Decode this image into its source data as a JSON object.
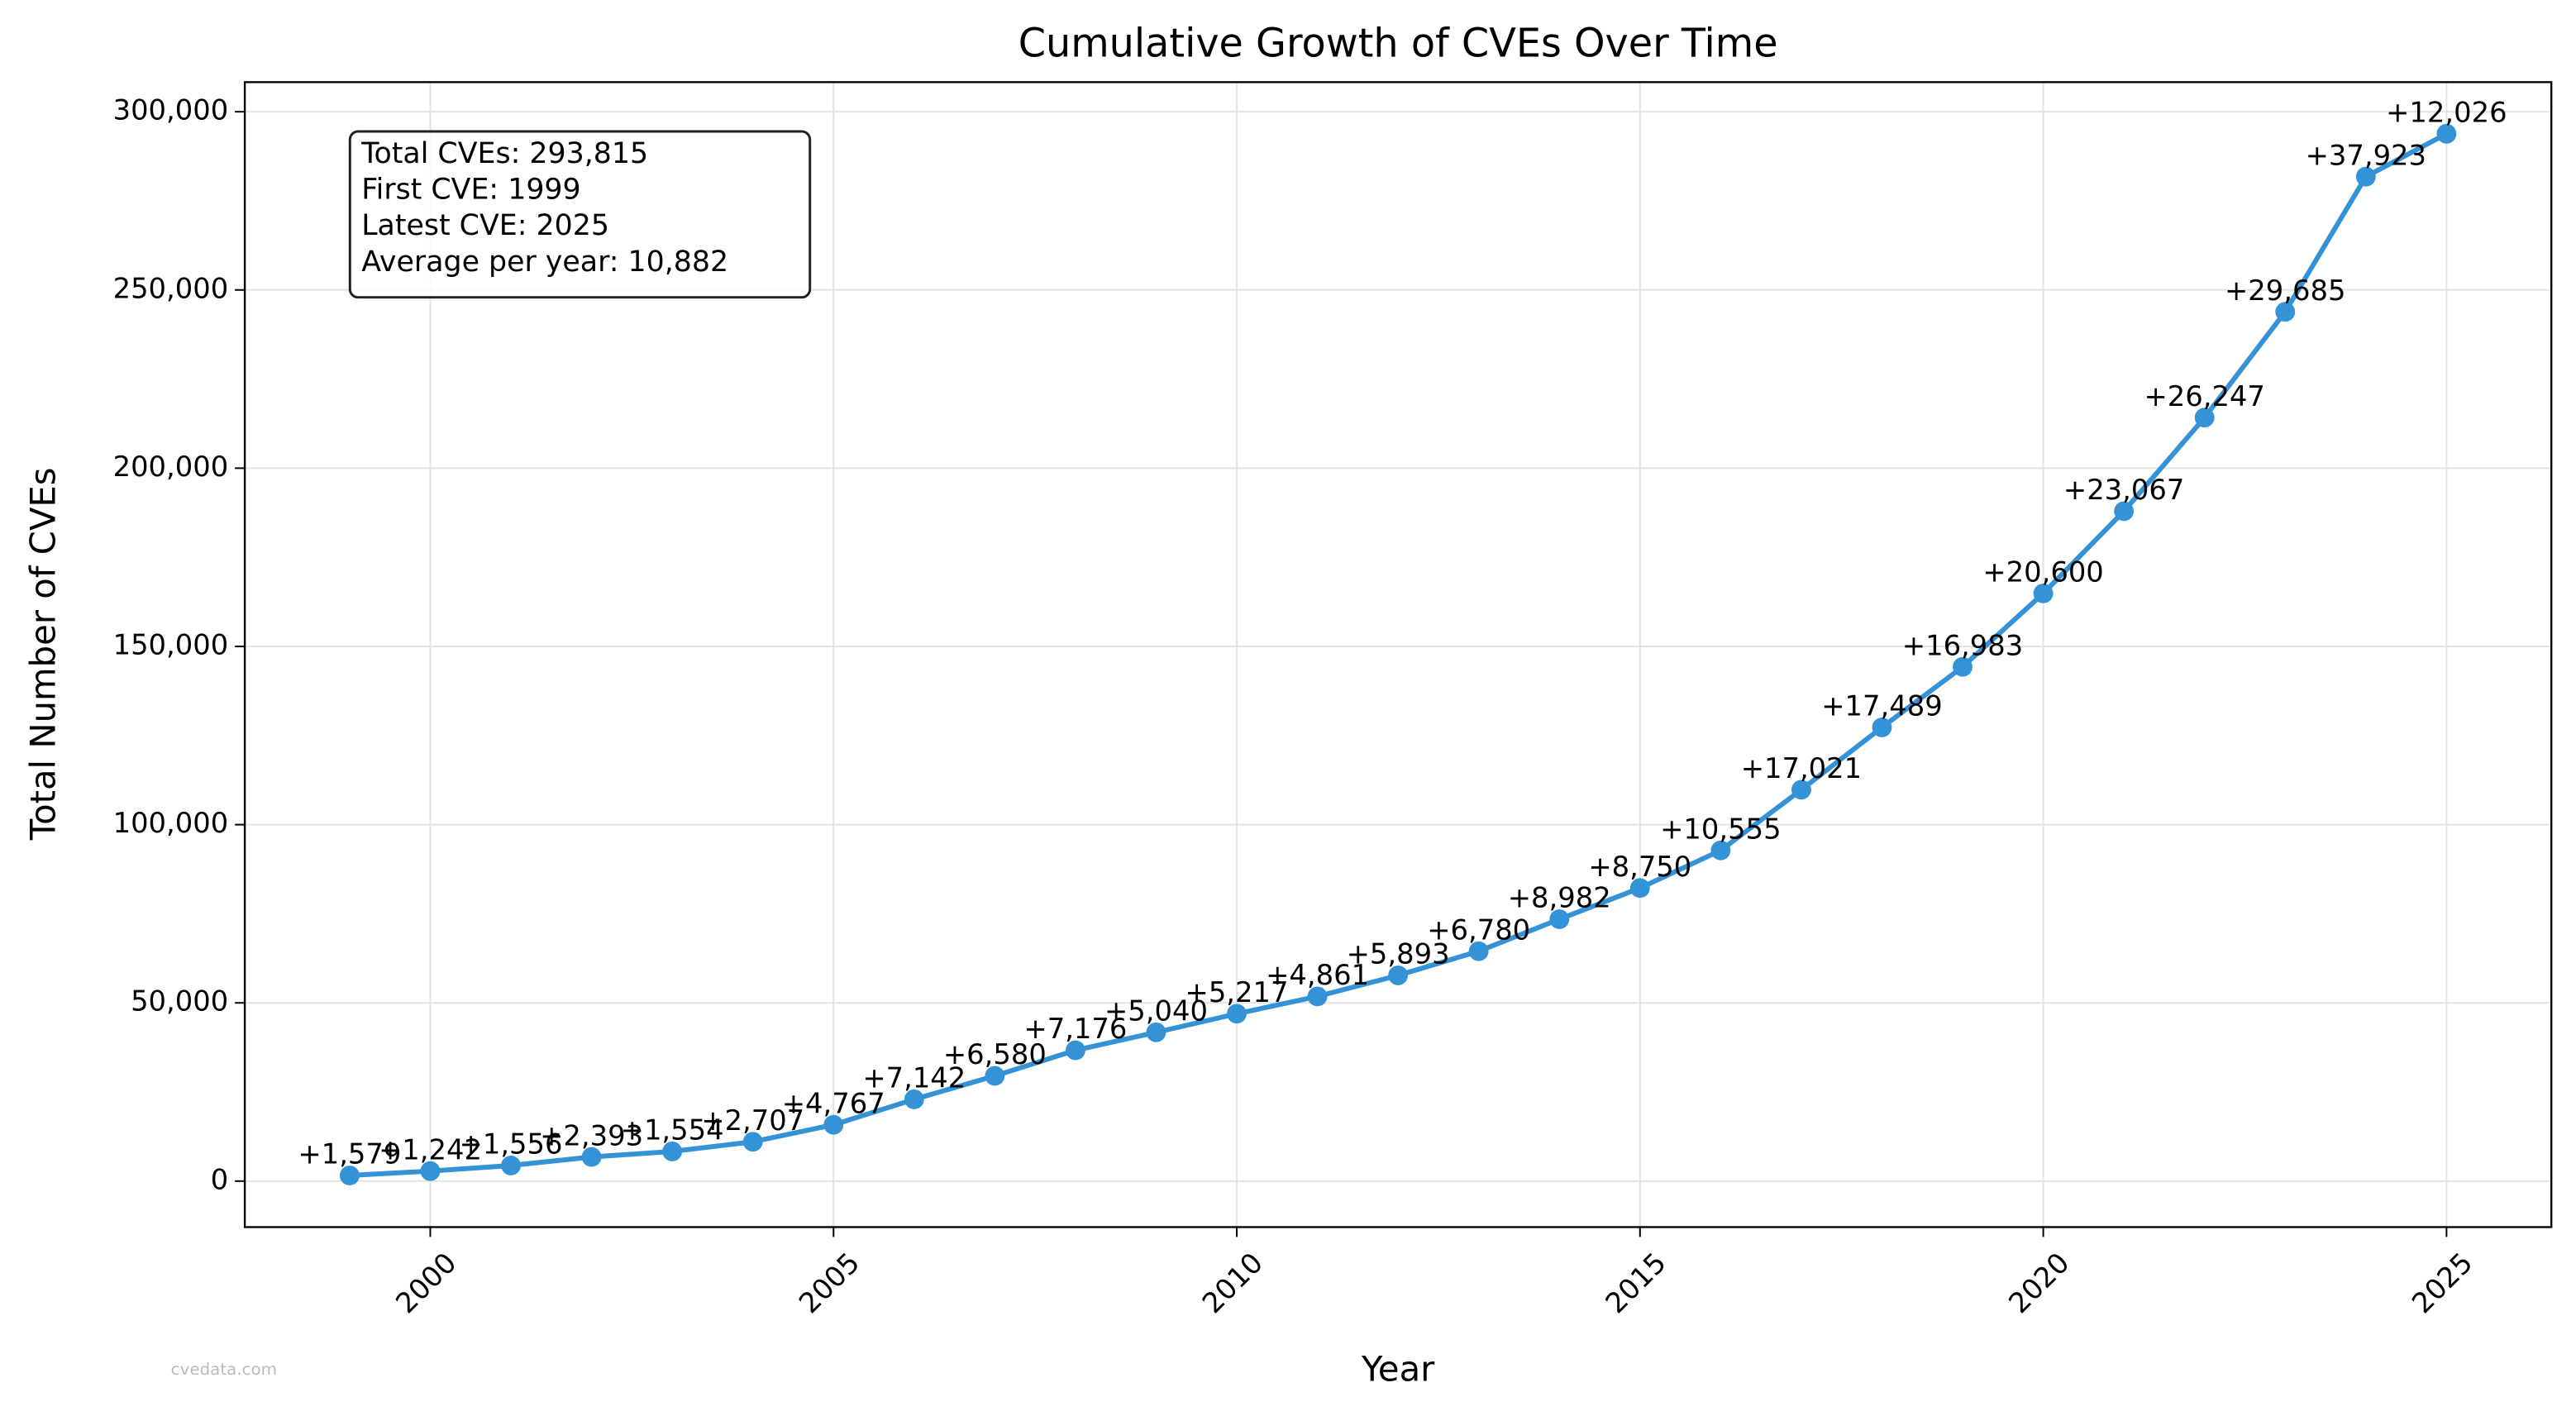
{
  "chart_data": {
    "type": "line",
    "title": "Cumulative Growth of CVEs Over Time",
    "x_label": "Year",
    "y_label": "Total Number of CVEs",
    "x": [
      1999,
      2000,
      2001,
      2002,
      2003,
      2004,
      2005,
      2006,
      2007,
      2008,
      2009,
      2010,
      2011,
      2012,
      2013,
      2014,
      2015,
      2016,
      2017,
      2018,
      2019,
      2020,
      2021,
      2022,
      2023,
      2024,
      2025
    ],
    "values": [
      1579,
      2821,
      4377,
      6770,
      8324,
      11031,
      15798,
      22940,
      29520,
      36696,
      41736,
      46953,
      51814,
      57707,
      64487,
      73469,
      82219,
      92774,
      109795,
      127284,
      144267,
      164867,
      187934,
      214181,
      243866,
      281789,
      293815
    ],
    "annotations": [
      "+1,579",
      "+1,242",
      "+1,556",
      "+2,393",
      "+1,554",
      "+2,707",
      "+4,767",
      "+7,142",
      "+6,580",
      "+7,176",
      "+5,040",
      "+5,217",
      "+4,861",
      "+5,893",
      "+6,780",
      "+8,982",
      "+8,750",
      "+10,555",
      "+17,021",
      "+17,489",
      "+16,983",
      "+20,600",
      "+23,067",
      "+26,247",
      "+29,685",
      "+37,923",
      "+12,026"
    ],
    "color": "#3492d6",
    "xlim": [
      1997.7,
      2026.3
    ],
    "xticks": [
      2000,
      2005,
      2010,
      2015,
      2020,
      2025
    ],
    "ylim": [
      -12900,
      308300
    ],
    "yticks": [
      0,
      {
        "value": 50000,
        "label": "50,000"
      },
      {
        "value": 100000,
        "label": "100,000"
      },
      {
        "value": 150000,
        "label": "150,000"
      },
      {
        "value": 200000,
        "label": "200,000"
      },
      {
        "value": 250000,
        "label": "250,000"
      },
      {
        "value": 300000,
        "label": "300,000"
      }
    ],
    "grid": true,
    "stats_box": [
      "Total CVEs: 293,815",
      "First CVE: 1999",
      "Latest CVE: 2025",
      "Average per year: 10,882"
    ],
    "watermark": "cvedata.com"
  }
}
